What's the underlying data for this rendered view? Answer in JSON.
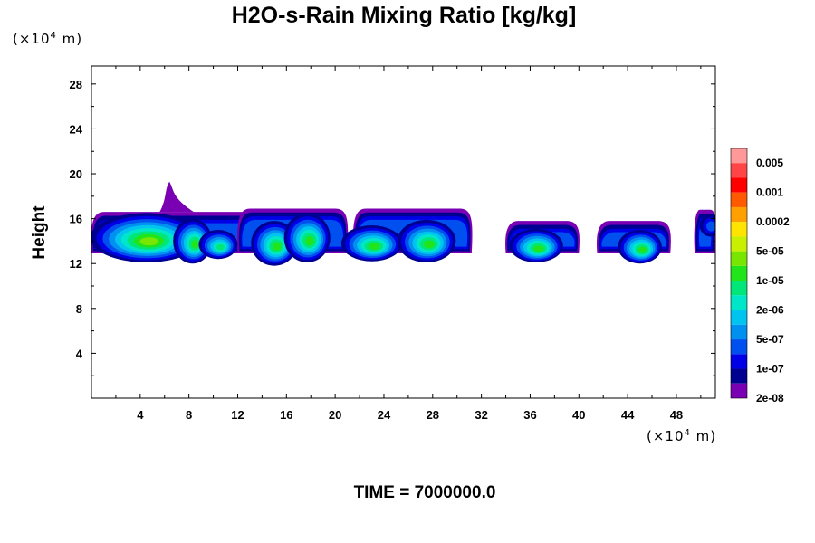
{
  "chart_data": {
    "type": "heatmap",
    "title": "H2O-s-Rain Mixing Ratio [kg/kg]",
    "xlabel": "",
    "ylabel": "Height",
    "x_unit": {
      "prefix": "(×10",
      "exp": "4",
      "suffix": " m)"
    },
    "y_unit": {
      "prefix": "(×10",
      "exp": "4",
      "suffix": " m)"
    },
    "xlim": [
      0,
      51.2
    ],
    "ylim": [
      0,
      29.6
    ],
    "xticks": [
      4,
      8,
      12,
      16,
      20,
      24,
      28,
      32,
      36,
      40,
      44,
      48
    ],
    "yticks": [
      4,
      8,
      12,
      16,
      20,
      24,
      28
    ],
    "time_label": "TIME = 7000000.0",
    "colorbar": {
      "labels": [
        "0.005",
        "0.001",
        "0.0002",
        "5e-05",
        "1e-05",
        "2e-06",
        "5e-07",
        "1e-07",
        "2e-08"
      ],
      "colors": [
        "#ff9999",
        "#ff4545",
        "#ff0000",
        "#ff5a00",
        "#ffa000",
        "#ffe400",
        "#c8f000",
        "#78e600",
        "#22e41a",
        "#00e678",
        "#00e6c8",
        "#00c4f0",
        "#0090f0",
        "#0050f0",
        "#0000e6",
        "#000090",
        "#7a00b4"
      ]
    },
    "cells": [
      {
        "xc": 4.5,
        "zc": 14.3,
        "wx": 4.6,
        "wz": 2.2,
        "peak": 9
      },
      {
        "xc": 8.3,
        "zc": 14.0,
        "wx": 1.6,
        "wz": 2.0,
        "peak": 8
      },
      {
        "xc": 10.4,
        "zc": 13.7,
        "wx": 1.6,
        "wz": 1.3,
        "peak": 7
      },
      {
        "xc": 15.0,
        "zc": 13.8,
        "wx": 1.9,
        "wz": 2.0,
        "peak": 8
      },
      {
        "xc": 17.7,
        "zc": 14.3,
        "wx": 1.9,
        "wz": 2.2,
        "peak": 8
      },
      {
        "xc": 23.0,
        "zc": 13.8,
        "wx": 2.5,
        "wz": 1.6,
        "peak": 8
      },
      {
        "xc": 27.5,
        "zc": 14.0,
        "wx": 2.4,
        "wz": 1.9,
        "peak": 8
      },
      {
        "xc": 36.5,
        "zc": 13.6,
        "wx": 2.2,
        "wz": 1.5,
        "peak": 8
      },
      {
        "xc": 45.0,
        "zc": 13.5,
        "wx": 1.8,
        "wz": 1.5,
        "peak": 8
      },
      {
        "xc": 50.8,
        "zc": 15.4,
        "wx": 0.9,
        "wz": 1.0,
        "peak": 3
      }
    ],
    "anvils": [
      {
        "x0": 0.0,
        "x1": 13.8,
        "ztop": 16.6
      },
      {
        "x0": 12.0,
        "x1": 21.0,
        "ztop": 16.9
      },
      {
        "x0": 21.5,
        "x1": 31.2,
        "ztop": 16.9
      },
      {
        "x0": 34.0,
        "x1": 40.0,
        "ztop": 15.8
      },
      {
        "x0": 41.5,
        "x1": 47.5,
        "ztop": 15.8
      },
      {
        "x0": 49.5,
        "x1": 51.2,
        "ztop": 16.8
      }
    ],
    "plume": {
      "x": 6.4,
      "zbase": 16.6,
      "ztop": 19.3
    }
  }
}
